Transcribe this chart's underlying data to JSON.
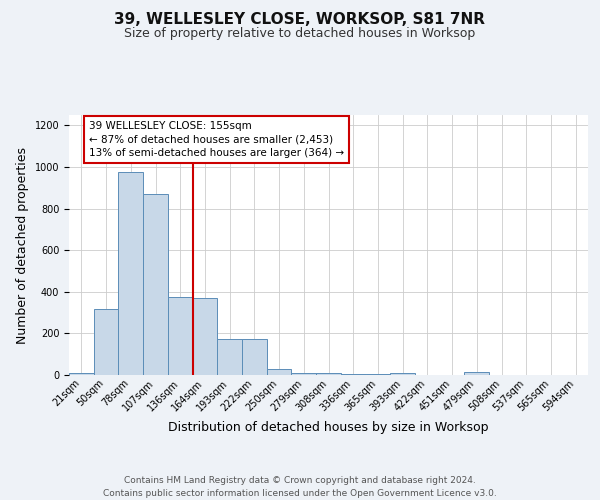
{
  "title": "39, WELLESLEY CLOSE, WORKSOP, S81 7NR",
  "subtitle": "Size of property relative to detached houses in Worksop",
  "xlabel": "Distribution of detached houses by size in Worksop",
  "ylabel": "Number of detached properties",
  "categories": [
    "21sqm",
    "50sqm",
    "78sqm",
    "107sqm",
    "136sqm",
    "164sqm",
    "193sqm",
    "222sqm",
    "250sqm",
    "279sqm",
    "308sqm",
    "336sqm",
    "365sqm",
    "393sqm",
    "422sqm",
    "451sqm",
    "479sqm",
    "508sqm",
    "537sqm",
    "565sqm",
    "594sqm"
  ],
  "values": [
    10,
    315,
    975,
    870,
    375,
    370,
    175,
    175,
    28,
    10,
    8,
    5,
    5,
    10,
    2,
    0,
    15,
    0,
    0,
    0,
    0
  ],
  "bar_color": "#c8d8e8",
  "bar_edge_color": "#5b8db8",
  "vline_x_index": 5,
  "vline_color": "#cc0000",
  "annotation_text": "39 WELLESLEY CLOSE: 155sqm\n← 87% of detached houses are smaller (2,453)\n13% of semi-detached houses are larger (364) →",
  "annotation_box_color": "#ffffff",
  "annotation_box_edge_color": "#cc0000",
  "footer_text": "Contains HM Land Registry data © Crown copyright and database right 2024.\nContains public sector information licensed under the Open Government Licence v3.0.",
  "bg_color": "#eef2f7",
  "plot_bg_color": "#ffffff",
  "ylim": [
    0,
    1250
  ],
  "title_fontsize": 11,
  "subtitle_fontsize": 9,
  "axis_label_fontsize": 9,
  "tick_fontsize": 7,
  "footer_fontsize": 6.5,
  "annotation_fontsize": 7.5
}
